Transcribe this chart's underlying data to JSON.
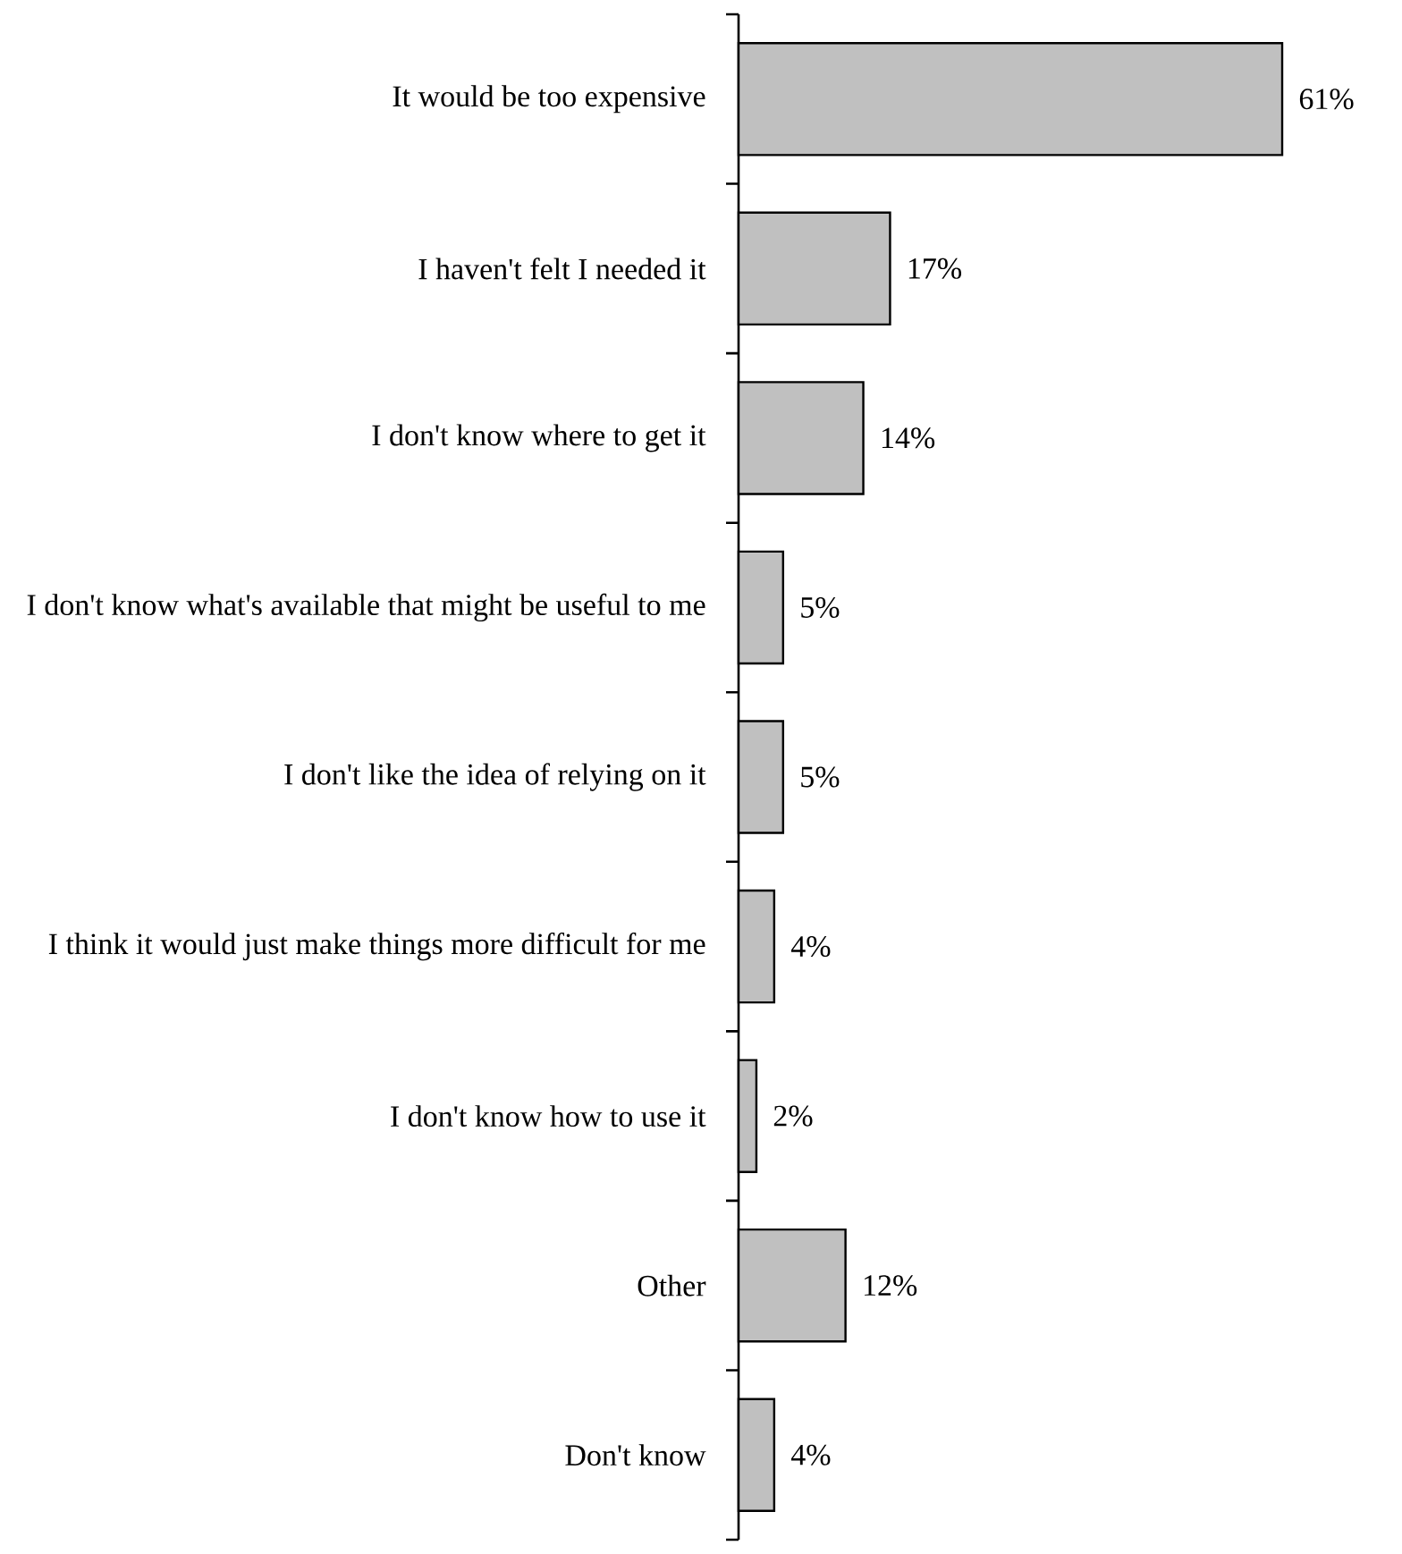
{
  "chart_data": {
    "type": "bar",
    "orientation": "horizontal",
    "categories": [
      "It would be too expensive",
      "I haven't felt I needed it",
      "I don't know where to get it",
      "I don't know what's available that might be useful to me",
      "I don't like the idea of relying on it",
      "I think it would just make things more difficult for me",
      "I don't know how to use it",
      "Other",
      "Don't know"
    ],
    "values": [
      61,
      17,
      14,
      5,
      5,
      4,
      2,
      12,
      4
    ],
    "value_labels": [
      "61%",
      "17%",
      "14%",
      "5%",
      "5%",
      "4%",
      "2%",
      "12%",
      "4%"
    ],
    "color": "#c0c0c0"
  }
}
